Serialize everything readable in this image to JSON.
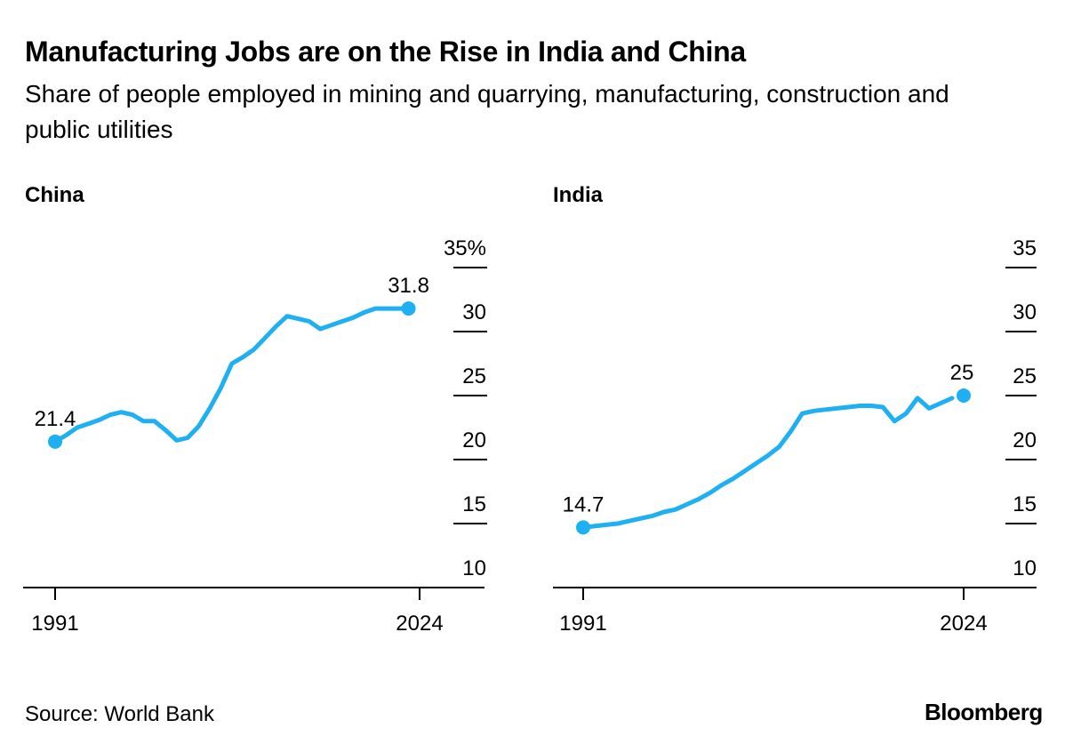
{
  "header": {
    "title": "Manufacturing Jobs are on the Rise in India and China",
    "subtitle": "Share of people employed in mining and quarrying, manufacturing, construction and public utilities"
  },
  "footer": {
    "source": "Source: World Bank",
    "brand": "Bloomberg"
  },
  "colors": {
    "line": "#1fb0f3",
    "axis": "#000000",
    "text": "#000000"
  },
  "chart_data": [
    {
      "type": "line",
      "title": "China",
      "xlabel": "",
      "ylabel": "",
      "x_tick_labels": [
        "1991",
        "2024"
      ],
      "y_tick_labels": [
        "10",
        "15",
        "20",
        "25",
        "30",
        "35%"
      ],
      "ylim": [
        10,
        35
      ],
      "grid": false,
      "series": [
        {
          "name": "China",
          "x": [
            1991,
            1992,
            1993,
            1994,
            1995,
            1996,
            1997,
            1998,
            1999,
            2000,
            2001,
            2002,
            2003,
            2004,
            2005,
            2006,
            2007,
            2008,
            2009,
            2010,
            2011,
            2012,
            2013,
            2014,
            2015,
            2016,
            2017,
            2018,
            2019,
            2020,
            2021,
            2022,
            2023
          ],
          "y": [
            21.4,
            21.9,
            22.5,
            22.8,
            23.1,
            23.5,
            23.7,
            23.5,
            23.0,
            23.0,
            22.3,
            21.5,
            21.7,
            22.6,
            24.0,
            25.6,
            27.5,
            28.0,
            28.6,
            29.5,
            30.4,
            31.2,
            31.0,
            30.8,
            30.2,
            30.5,
            30.8,
            31.1,
            31.5,
            31.8,
            31.8,
            31.8,
            31.8
          ]
        }
      ],
      "annotations": [
        {
          "year": 1991,
          "value": 21.4,
          "label": "21.4"
        },
        {
          "year": 2023,
          "value": 31.8,
          "label": "31.8"
        }
      ]
    },
    {
      "type": "line",
      "title": "India",
      "xlabel": "",
      "ylabel": "",
      "x_tick_labels": [
        "1991",
        "2024"
      ],
      "y_tick_labels": [
        "10",
        "15",
        "20",
        "25",
        "30",
        "35"
      ],
      "ylim": [
        10,
        35
      ],
      "grid": false,
      "series": [
        {
          "name": "India",
          "x": [
            1991,
            1992,
            1993,
            1994,
            1995,
            1996,
            1997,
            1998,
            1999,
            2000,
            2001,
            2002,
            2003,
            2004,
            2005,
            2006,
            2007,
            2008,
            2009,
            2010,
            2011,
            2012,
            2013,
            2014,
            2015,
            2016,
            2017,
            2018,
            2019,
            2020,
            2021,
            2022,
            2023
          ],
          "y": [
            14.7,
            14.8,
            14.9,
            15.0,
            15.2,
            15.4,
            15.6,
            15.9,
            16.1,
            16.5,
            16.9,
            17.4,
            18.0,
            18.5,
            19.1,
            19.7,
            20.3,
            21.0,
            22.2,
            23.6,
            23.8,
            23.9,
            24.0,
            24.1,
            24.2,
            24.2,
            24.1,
            23.0,
            23.6,
            24.8,
            24.0,
            24.4,
            24.8
          ]
        }
      ],
      "annotations": [
        {
          "year": 1991,
          "value": 14.7,
          "label": "14.7"
        },
        {
          "year": 2024,
          "value": 25,
          "label": "25"
        }
      ]
    }
  ]
}
